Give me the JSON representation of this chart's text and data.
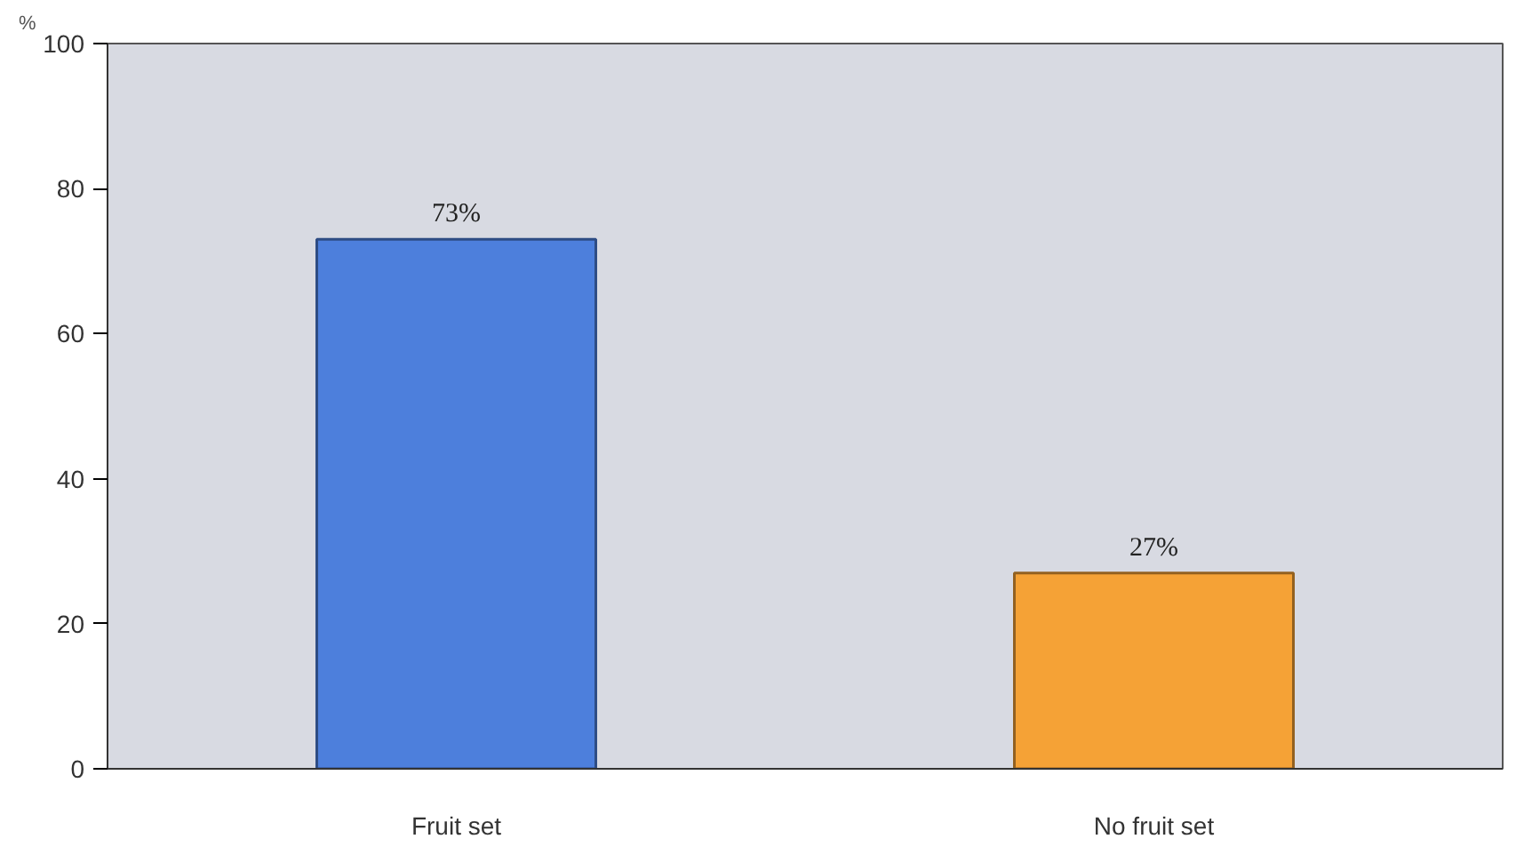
{
  "chart_data": {
    "type": "bar",
    "ylabel": "%",
    "categories": [
      "Fruit set",
      "No fruit set"
    ],
    "values": [
      73,
      27
    ],
    "colors": [
      "#4d7fdc",
      "#f5a236"
    ],
    "value_labels": [
      "73%",
      "27%"
    ],
    "ylim": [
      0,
      100
    ],
    "yticks": [
      0,
      20,
      40,
      60,
      80,
      100
    ],
    "grid": false
  }
}
